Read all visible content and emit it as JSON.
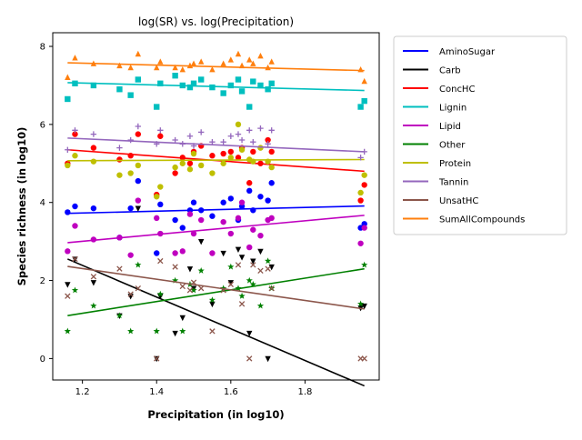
{
  "chart_data": {
    "type": "scatter",
    "title": "log(SR) vs. log(Precipitation)",
    "xlabel": "Precipitation (in log10)",
    "ylabel": "Species richness (in log10)",
    "xlim": [
      1.12,
      2.0
    ],
    "ylim": [
      -0.55,
      8.35
    ],
    "xticks": [
      "1.2",
      "1.4",
      "1.6",
      "1.8"
    ],
    "yticks": [
      "0",
      "2",
      "4",
      "6",
      "8"
    ],
    "legend_position": "outside-right",
    "grid": false,
    "x": [
      1.16,
      1.18,
      1.23,
      1.3,
      1.33,
      1.35,
      1.4,
      1.41,
      1.45,
      1.47,
      1.49,
      1.5,
      1.52,
      1.55,
      1.58,
      1.6,
      1.62,
      1.63,
      1.65,
      1.66,
      1.68,
      1.7,
      1.71,
      1.95,
      1.96
    ],
    "series": [
      {
        "name": "AminoSugar",
        "color": "#0000ff",
        "marker": "circle",
        "y": [
          3.75,
          3.9,
          3.85,
          3.1,
          3.85,
          4.55,
          2.7,
          3.95,
          3.55,
          3.35,
          3.8,
          4.0,
          3.8,
          3.65,
          4.0,
          4.1,
          3.55,
          3.9,
          4.3,
          3.8,
          4.15,
          4.05,
          4.5,
          3.35,
          3.45
        ],
        "fit": [
          3.72,
          3.91
        ]
      },
      {
        "name": "Carb",
        "color": "#000000",
        "marker": "triangle-down",
        "y": [
          1.9,
          2.55,
          1.95,
          1.1,
          1.6,
          3.85,
          0.0,
          1.6,
          0.65,
          1.05,
          2.3,
          1.8,
          3.0,
          1.4,
          2.7,
          1.95,
          2.8,
          2.6,
          0.65,
          2.5,
          2.75,
          0.0,
          2.35,
          1.3,
          1.35
        ],
        "fit": [
          2.55,
          -0.7
        ]
      },
      {
        "name": "ConcHC",
        "color": "#ff0000",
        "marker": "circle",
        "y": [
          5.0,
          5.75,
          5.4,
          5.1,
          5.2,
          5.75,
          4.2,
          5.7,
          4.75,
          5.15,
          5.0,
          5.3,
          5.45,
          5.2,
          5.25,
          5.3,
          5.15,
          5.4,
          4.5,
          5.3,
          5.0,
          5.6,
          5.3,
          4.05,
          4.45
        ],
        "fit": [
          5.35,
          4.8
        ]
      },
      {
        "name": "Lignin",
        "color": "#00bfbf",
        "marker": "square",
        "y": [
          6.65,
          7.05,
          7.0,
          6.9,
          6.75,
          7.15,
          6.45,
          7.05,
          7.25,
          7.0,
          6.95,
          7.05,
          7.15,
          6.95,
          6.8,
          7.0,
          7.15,
          6.85,
          6.45,
          7.1,
          7.0,
          6.9,
          7.05,
          6.45,
          6.6
        ],
        "fit": [
          7.07,
          6.87
        ]
      },
      {
        "name": "Lipid",
        "color": "#bf00bf",
        "marker": "circle",
        "y": [
          2.75,
          3.4,
          3.05,
          3.1,
          2.65,
          4.05,
          3.6,
          3.2,
          2.7,
          2.75,
          3.7,
          3.2,
          3.55,
          2.7,
          3.5,
          3.2,
          3.6,
          4.0,
          2.85,
          3.3,
          3.15,
          3.55,
          3.6,
          2.95,
          3.35
        ],
        "fit": [
          2.97,
          3.67
        ]
      },
      {
        "name": "Other",
        "color": "#008000",
        "marker": "star",
        "y": [
          0.7,
          1.75,
          1.35,
          1.1,
          0.7,
          2.4,
          0.7,
          1.65,
          2.0,
          0.7,
          1.9,
          1.75,
          2.25,
          1.5,
          1.8,
          2.35,
          1.8,
          1.6,
          2.0,
          1.9,
          1.35,
          2.5,
          1.8,
          1.4,
          2.4
        ],
        "fit": [
          1.1,
          2.3
        ]
      },
      {
        "name": "Protein",
        "color": "#bfbf00",
        "marker": "circle",
        "y": [
          4.95,
          5.2,
          5.05,
          4.7,
          4.75,
          4.95,
          4.15,
          4.4,
          4.9,
          5.0,
          4.85,
          5.25,
          4.95,
          4.75,
          5.0,
          5.15,
          6.0,
          5.35,
          5.1,
          5.05,
          5.4,
          5.05,
          4.9,
          4.25,
          4.7
        ],
        "fit": [
          5.07,
          5.1
        ]
      },
      {
        "name": "Tannin",
        "color": "#9467bd",
        "marker": "plus",
        "y": [
          5.35,
          5.85,
          5.75,
          5.4,
          5.6,
          5.95,
          5.5,
          5.85,
          5.6,
          5.5,
          5.7,
          5.45,
          5.8,
          5.55,
          5.55,
          5.7,
          5.75,
          5.6,
          5.85,
          5.55,
          5.9,
          5.5,
          5.85,
          5.15,
          5.3
        ],
        "fit": [
          5.65,
          5.3
        ]
      },
      {
        "name": "UnsatHC",
        "color": "#8c564b",
        "marker": "x",
        "y": [
          1.6,
          2.55,
          2.1,
          2.3,
          1.65,
          1.8,
          0.0,
          2.5,
          2.35,
          1.85,
          1.75,
          1.95,
          1.8,
          0.7,
          1.75,
          1.9,
          2.4,
          1.4,
          0.0,
          2.4,
          2.25,
          2.3,
          1.8,
          0.0,
          0.0
        ],
        "fit": [
          2.36,
          1.27
        ]
      },
      {
        "name": "SumAllCompounds",
        "color": "#ff7f0e",
        "marker": "triangle-up",
        "y": [
          7.2,
          7.7,
          7.55,
          7.5,
          7.45,
          7.8,
          7.45,
          7.6,
          7.45,
          7.4,
          7.5,
          7.55,
          7.6,
          7.4,
          7.55,
          7.65,
          7.8,
          7.5,
          7.65,
          7.55,
          7.75,
          7.45,
          7.6,
          7.4,
          7.1
        ],
        "fit": [
          7.58,
          7.38
        ]
      }
    ]
  }
}
